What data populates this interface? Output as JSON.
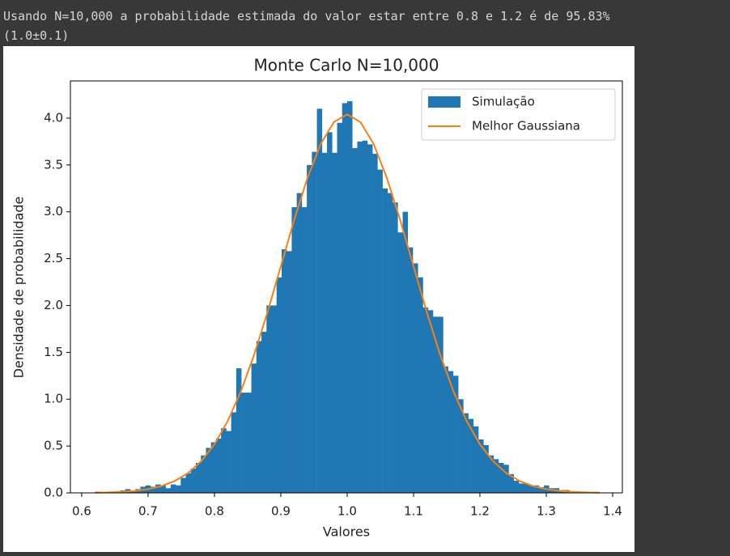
{
  "output": {
    "lines": [
      "Usando N=10,000 a probabilidade estimada do valor estar entre 0.8 e 1.2 é de 95.83%",
      "(1.0±0.1)"
    ]
  },
  "chart_data": {
    "type": "histogram",
    "title": "Monte Carlo N=10,000",
    "xlabel": "Valores",
    "ylabel": "Densidade de probabilidade",
    "bins": [
      0.62,
      0.6276,
      0.6352,
      0.6428,
      0.6504,
      0.658,
      0.6656,
      0.6732,
      0.6808,
      0.6884,
      0.696,
      0.7036,
      0.7112,
      0.7188,
      0.7264,
      0.734,
      0.7416,
      0.7492,
      0.7568,
      0.7644,
      0.772,
      0.7796,
      0.7872,
      0.7948,
      0.8024,
      0.81,
      0.8176,
      0.8252,
      0.8328,
      0.8404,
      0.848,
      0.8556,
      0.8632,
      0.8708,
      0.8784,
      0.886,
      0.8936,
      0.9012,
      0.9088,
      0.9164,
      0.924,
      0.9316,
      0.9392,
      0.9468,
      0.9544,
      0.962,
      0.9696,
      0.9772,
      0.9848,
      0.9924,
      1.0,
      1.0076,
      1.0152,
      1.0228,
      1.0304,
      1.038,
      1.0456,
      1.0532,
      1.0608,
      1.0684,
      1.076,
      1.0836,
      1.0912,
      1.0988,
      1.1064,
      1.114,
      1.1216,
      1.1292,
      1.1368,
      1.1444,
      1.152,
      1.1596,
      1.1672,
      1.1748,
      1.1824,
      1.19,
      1.1976,
      1.2052,
      1.2128,
      1.2204,
      1.228,
      1.2356,
      1.2432,
      1.2508,
      1.2584,
      1.266,
      1.2736,
      1.2812,
      1.2888,
      1.2964,
      1.304,
      1.3116,
      1.3192,
      1.3268,
      1.3344,
      1.342,
      1.3496,
      1.3572,
      1.3648,
      1.3724,
      1.38
    ],
    "series": [
      {
        "name": "Simulação",
        "color": "#1f77b4",
        "values": [
          0.013,
          0,
          0,
          0.013,
          0,
          0.026,
          0.04,
          0.026,
          0.04,
          0.066,
          0.08,
          0.066,
          0.09,
          0.08,
          0.05,
          0.09,
          0.08,
          0.16,
          0.21,
          0.26,
          0.32,
          0.4,
          0.48,
          0.54,
          0.58,
          0.69,
          0.66,
          0.86,
          1.33,
          1.07,
          1.07,
          1.38,
          1.62,
          1.72,
          2.0,
          2.0,
          2.3,
          2.6,
          2.58,
          3.05,
          3.2,
          3.05,
          3.5,
          3.64,
          4.1,
          3.63,
          3.85,
          3.63,
          3.95,
          4.16,
          4.18,
          3.68,
          3.75,
          3.76,
          3.72,
          3.62,
          3.45,
          3.25,
          3.2,
          3.1,
          2.78,
          3.0,
          2.62,
          2.45,
          2.3,
          1.98,
          1.95,
          1.88,
          1.88,
          1.35,
          1.3,
          1.25,
          1.0,
          0.85,
          0.79,
          0.71,
          0.57,
          0.51,
          0.4,
          0.36,
          0.32,
          0.3,
          0.2,
          0.13,
          0.1,
          0.1,
          0.08,
          0.08,
          0.06,
          0.08,
          0.05,
          0.05,
          0.03,
          0.03,
          0.01,
          0.01,
          0.01,
          0,
          0,
          0.01
        ]
      },
      {
        "name": "Melhor Gaussiana",
        "color": "#ff7f0e",
        "type": "line",
        "x": [
          0.62,
          0.64,
          0.66,
          0.68,
          0.7,
          0.72,
          0.74,
          0.76,
          0.78,
          0.8,
          0.82,
          0.84,
          0.86,
          0.88,
          0.9,
          0.92,
          0.94,
          0.96,
          0.98,
          1.0,
          1.02,
          1.04,
          1.06,
          1.08,
          1.1,
          1.12,
          1.14,
          1.16,
          1.18,
          1.2,
          1.22,
          1.24,
          1.26,
          1.28,
          1.3,
          1.32,
          1.34,
          1.36,
          1.38
        ],
        "values": [
          0.002,
          0.005,
          0.011,
          0.021,
          0.04,
          0.072,
          0.126,
          0.21,
          0.337,
          0.518,
          0.766,
          1.086,
          1.477,
          1.929,
          2.418,
          2.909,
          3.358,
          3.722,
          3.958,
          4.04,
          3.958,
          3.722,
          3.358,
          2.909,
          2.418,
          1.929,
          1.477,
          1.086,
          0.766,
          0.518,
          0.337,
          0.21,
          0.126,
          0.072,
          0.04,
          0.021,
          0.011,
          0.005,
          0.002
        ]
      }
    ],
    "xlim": [
      0.583,
      1.4146
    ],
    "ylim": [
      0,
      4.397
    ],
    "xticks": [
      0.6,
      0.7,
      0.8,
      0.9,
      {
        "value": 1,
        "label": "1.0"
      },
      1.1,
      1.2,
      1.3,
      1.4
    ],
    "yticks": [
      {
        "value": 0,
        "label": "0.0"
      },
      0.5,
      {
        "value": 1,
        "label": "1.0"
      },
      1.5,
      {
        "value": 2,
        "label": "2.0"
      },
      2.5,
      {
        "value": 3,
        "label": "3.0"
      },
      3.5,
      {
        "value": 4,
        "label": "4.0"
      }
    ],
    "legend": "upper right"
  }
}
